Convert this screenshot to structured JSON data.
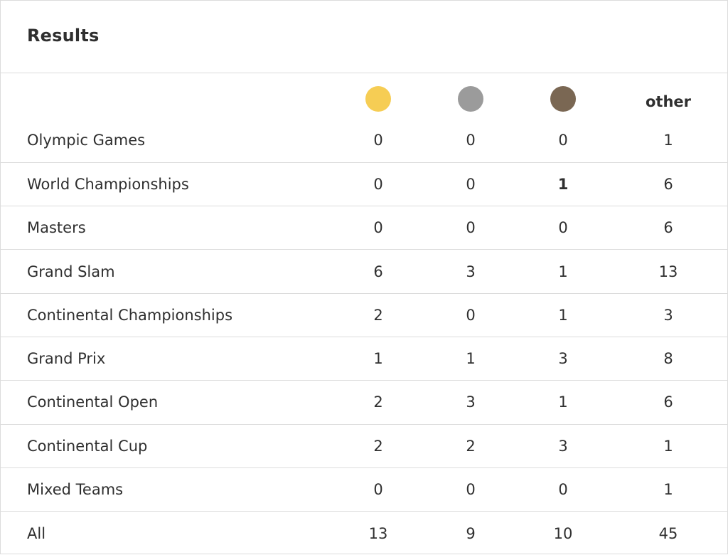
{
  "title": "Results",
  "columns": {
    "gold": "gold",
    "silver": "silver",
    "bronze": "bronze",
    "other": "other"
  },
  "colors": {
    "gold": "#f6cd54",
    "silver": "#9b9b9b",
    "bronze": "#7a6753"
  },
  "rows": [
    {
      "name": "Olympic Games",
      "gold": "0",
      "silver": "0",
      "bronze": "0",
      "other": "1"
    },
    {
      "name": "World Championships",
      "gold": "0",
      "silver": "0",
      "bronze": "1",
      "other": "6",
      "bronze_bold": true
    },
    {
      "name": "Masters",
      "gold": "0",
      "silver": "0",
      "bronze": "0",
      "other": "6"
    },
    {
      "name": "Grand Slam",
      "gold": "6",
      "silver": "3",
      "bronze": "1",
      "other": "13"
    },
    {
      "name": "Continental Championships",
      "gold": "2",
      "silver": "0",
      "bronze": "1",
      "other": "3"
    },
    {
      "name": "Grand Prix",
      "gold": "1",
      "silver": "1",
      "bronze": "3",
      "other": "8"
    },
    {
      "name": "Continental Open",
      "gold": "2",
      "silver": "3",
      "bronze": "1",
      "other": "6"
    },
    {
      "name": "Continental Cup",
      "gold": "2",
      "silver": "2",
      "bronze": "3",
      "other": "1"
    },
    {
      "name": "Mixed Teams",
      "gold": "0",
      "silver": "0",
      "bronze": "0",
      "other": "1"
    },
    {
      "name": "All",
      "gold": "13",
      "silver": "9",
      "bronze": "10",
      "other": "45"
    }
  ]
}
